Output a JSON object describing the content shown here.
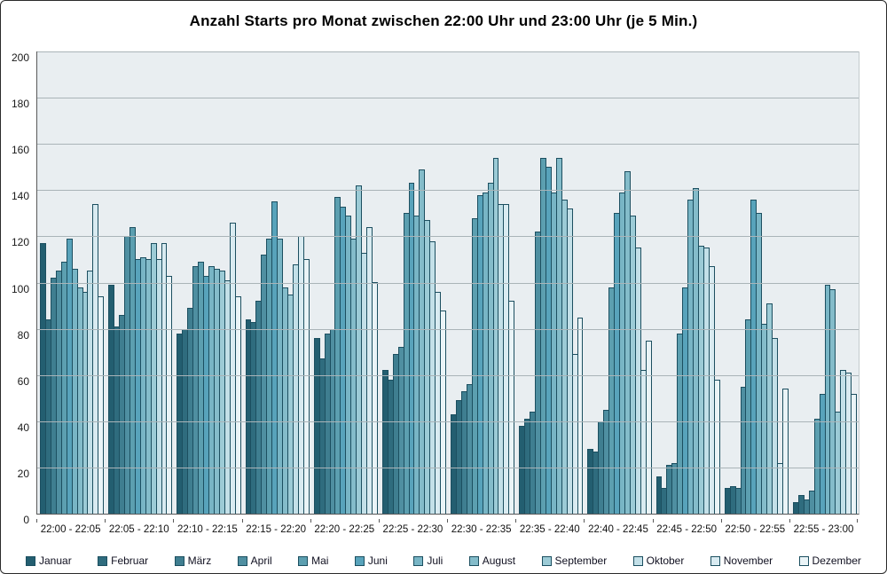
{
  "window": {
    "title": "Anzahl Starts pro Monat zwischen 22:00 Uhr und 23:00 Uhr (je 5 Min.)"
  },
  "chart_data": {
    "type": "bar",
    "grouped": true,
    "title": "Anzahl Starts pro Monat zwischen 22:00 Uhr und 23:00 Uhr (je 5 Min.)",
    "xlabel": "",
    "ylabel": "",
    "ylim": [
      0,
      200
    ],
    "ytick_step": 20,
    "grid": true,
    "legend_position": "bottom",
    "plot_bg": "#e9eef1",
    "gridline_color": "#aab4b8",
    "bar_outline_color": "#1c4f60",
    "categories": [
      "22:00 - 22:05",
      "22:05 - 22:10",
      "22:10 - 22:15",
      "22:15 - 22:20",
      "22:20 - 22:25",
      "22:25 - 22:30",
      "22:30 - 22:35",
      "22:35 - 22:40",
      "22:40 - 22:45",
      "22:45 - 22:50",
      "22:50 - 22:55",
      "22:55 - 23:00"
    ],
    "series": [
      {
        "name": "Januar",
        "color": "#235e70",
        "values": [
          117,
          99,
          78,
          84,
          76,
          62,
          43,
          38,
          28,
          16,
          11,
          5
        ]
      },
      {
        "name": "Februar",
        "color": "#2f6c7e",
        "values": [
          84,
          81,
          80,
          83,
          67,
          58,
          49,
          41,
          27,
          11,
          12,
          8
        ]
      },
      {
        "name": "März",
        "color": "#3f7e90",
        "values": [
          102,
          86,
          89,
          92,
          78,
          69,
          53,
          44,
          40,
          21,
          11,
          6
        ]
      },
      {
        "name": "April",
        "color": "#4f8fa1",
        "values": [
          105,
          120,
          107,
          112,
          80,
          72,
          56,
          122,
          45,
          22,
          55,
          10
        ]
      },
      {
        "name": "Mai",
        "color": "#5c9fb0",
        "values": [
          109,
          124,
          109,
          119,
          137,
          130,
          128,
          154,
          98,
          78,
          84,
          41
        ]
      },
      {
        "name": "Juni",
        "color": "#58a3bb",
        "values": [
          119,
          110,
          103,
          135,
          133,
          143,
          138,
          150,
          130,
          98,
          136,
          52
        ]
      },
      {
        "name": "Juli",
        "color": "#78b5c5",
        "values": [
          106,
          111,
          107,
          119,
          129,
          129,
          139,
          139,
          139,
          136,
          130,
          99
        ]
      },
      {
        "name": "August",
        "color": "#84bcca",
        "values": [
          98,
          110,
          106,
          98,
          119,
          149,
          143,
          154,
          148,
          141,
          82,
          97
        ]
      },
      {
        "name": "September",
        "color": "#9ccbd6",
        "values": [
          96,
          117,
          105,
          95,
          142,
          127,
          154,
          136,
          129,
          116,
          91,
          44
        ]
      },
      {
        "name": "Oktober",
        "color": "#c3e0e8",
        "values": [
          105,
          110,
          101,
          108,
          113,
          118,
          134,
          132,
          115,
          115,
          76,
          62
        ]
      },
      {
        "name": "November",
        "color": "#d9ebf1",
        "values": [
          134,
          117,
          126,
          120,
          124,
          96,
          134,
          69,
          62,
          107,
          22,
          61
        ]
      },
      {
        "name": "Dezember",
        "color": "#eaf4f7",
        "values": [
          94,
          103,
          94,
          110,
          100,
          88,
          92,
          85,
          75,
          58,
          54,
          52
        ]
      }
    ]
  }
}
